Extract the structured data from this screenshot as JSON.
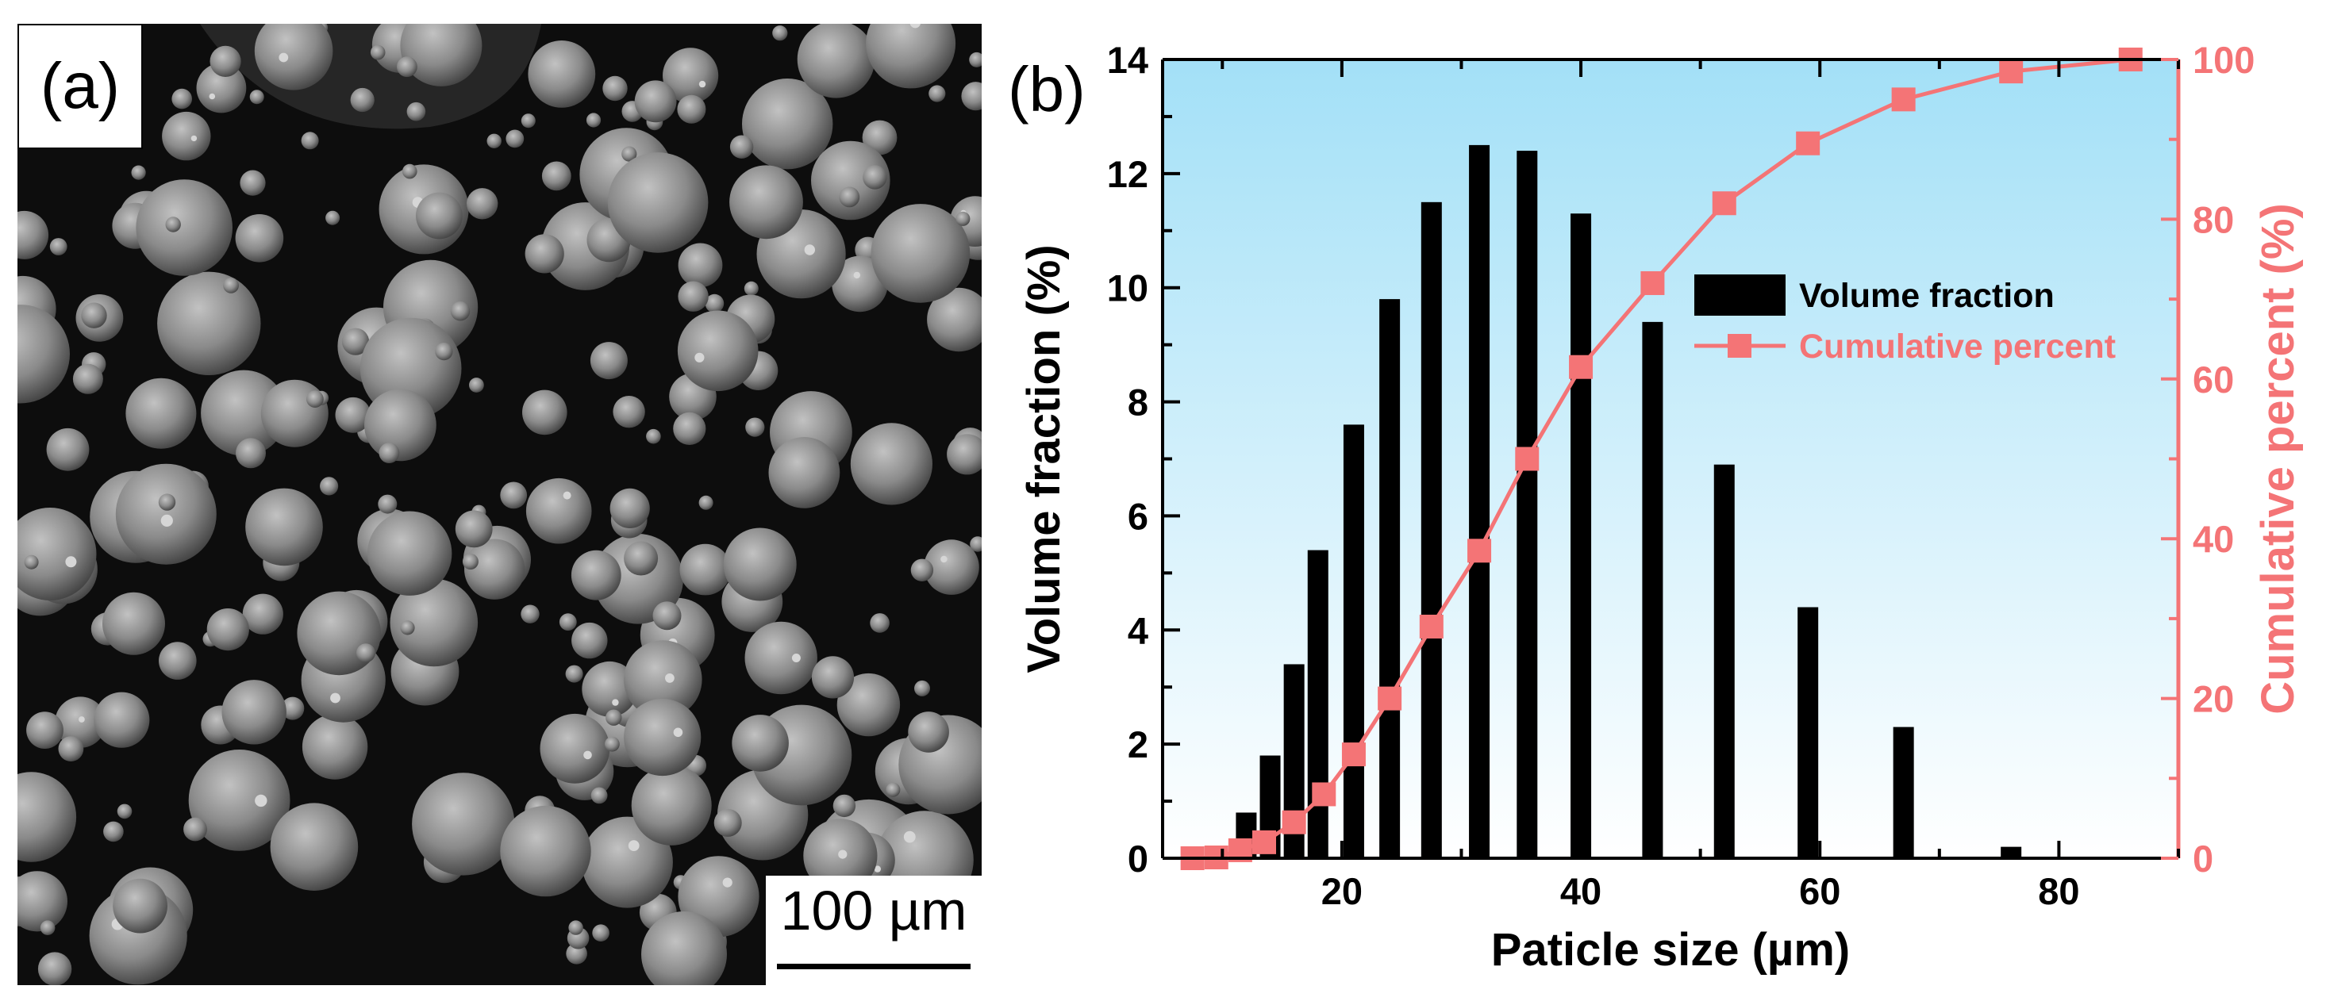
{
  "panel_a": {
    "label": "(a)",
    "scale_bar_label": "100 µm"
  },
  "chart_data": {
    "type": "bar",
    "panel_label": "(b)",
    "xlabel": "Paticle size (µm)",
    "ylabel": "Volume fraction (%)",
    "y2label": "Cumulative percent (%)",
    "xlim": [
      5,
      90
    ],
    "ylim": [
      0,
      14
    ],
    "y2lim": [
      0,
      100
    ],
    "x_ticks": [
      20,
      40,
      60,
      80
    ],
    "y_ticks": [
      0,
      2,
      4,
      6,
      8,
      10,
      12,
      14
    ],
    "y2_ticks": [
      0,
      20,
      40,
      60,
      80,
      100
    ],
    "background": "sky-gradient",
    "colors": {
      "bars": "#000000",
      "cumulative": "#f47476",
      "bg_top": "#a3e0f7",
      "bg_bottom": "#ffffff"
    },
    "legend": {
      "position": "center-right",
      "entries": [
        "Volume fraction",
        "Cumulative percent"
      ]
    },
    "series": [
      {
        "name": "Volume fraction",
        "type": "bar",
        "x": [
          9,
          12,
          14,
          16,
          18,
          21,
          24,
          27.5,
          31.5,
          35.5,
          40,
          46,
          52,
          59,
          67,
          76,
          86
        ],
        "values": [
          0.02,
          0.8,
          1.8,
          3.4,
          5.4,
          7.6,
          9.8,
          11.5,
          12.5,
          12.4,
          11.3,
          9.4,
          6.9,
          4.4,
          2.3,
          0.2,
          0.0
        ]
      },
      {
        "name": "Cumulative percent",
        "type": "line",
        "axis": "y2",
        "x": [
          7.5,
          9.5,
          11.5,
          13.5,
          16,
          18.5,
          21,
          24,
          27.5,
          31.5,
          35.5,
          40,
          46,
          52,
          59,
          67,
          76,
          86
        ],
        "values": [
          0,
          0.1,
          1,
          2,
          4.5,
          8,
          13,
          20,
          29,
          38.5,
          50,
          61.5,
          72,
          82,
          89.5,
          95,
          98.5,
          100
        ]
      }
    ]
  }
}
